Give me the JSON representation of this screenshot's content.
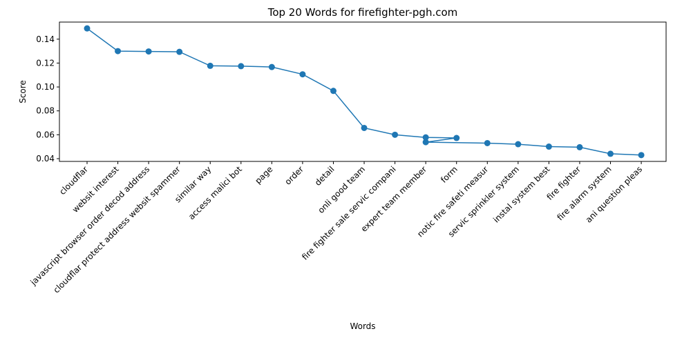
{
  "chart_data": {
    "type": "line",
    "title": "Top 20 Words for firefighter-pgh.com",
    "xlabel": "Words",
    "ylabel": "Score",
    "categories": [
      "cloudflar",
      "websit interest",
      "javascript browser order decod address",
      "cloudflar protect address websit spammer",
      "similar way",
      "access malici bot",
      "page",
      "order",
      "detail",
      "onli good team",
      "fire fighter sale servic compani",
      "expert team member",
      "form",
      "notic fire safeti measur",
      "servic sprinkler system",
      "instal system best",
      "fire fighter",
      "fire alarm system",
      "ani question pleas"
    ],
    "points": [
      {
        "x": "cloudflar",
        "y": 0.149
      },
      {
        "x": "websit interest",
        "y": 0.13
      },
      {
        "x": "javascript browser order decod address",
        "y": 0.1297
      },
      {
        "x": "cloudflar protect address websit spammer",
        "y": 0.1294
      },
      {
        "x": "similar way",
        "y": 0.1177
      },
      {
        "x": "access malici bot",
        "y": 0.1174
      },
      {
        "x": "page",
        "y": 0.1167
      },
      {
        "x": "order",
        "y": 0.1106
      },
      {
        "x": "detail",
        "y": 0.0967
      },
      {
        "x": "onli good team",
        "y": 0.0657
      },
      {
        "x": "fire fighter sale servic compani",
        "y": 0.06
      },
      {
        "x": "expert team member",
        "y": 0.0578
      },
      {
        "x": "form",
        "y": 0.0573
      },
      {
        "x": "expert team member",
        "y": 0.0538
      },
      {
        "x": "notic fire safeti measur",
        "y": 0.053
      },
      {
        "x": "servic sprinkler system",
        "y": 0.0521
      },
      {
        "x": "instal system best",
        "y": 0.0501
      },
      {
        "x": "fire fighter",
        "y": 0.0496
      },
      {
        "x": "fire alarm system",
        "y": 0.0441
      },
      {
        "x": "ani question pleas",
        "y": 0.043
      }
    ],
    "yticks": [
      0.04,
      0.06,
      0.08,
      0.1,
      0.12,
      0.14
    ],
    "ytick_labels": [
      "0.04",
      "0.06",
      "0.08",
      "0.10",
      "0.12",
      "0.14"
    ],
    "ylim": [
      0.0377,
      0.1543
    ],
    "grid": false,
    "series_color": "#1f77b4"
  }
}
